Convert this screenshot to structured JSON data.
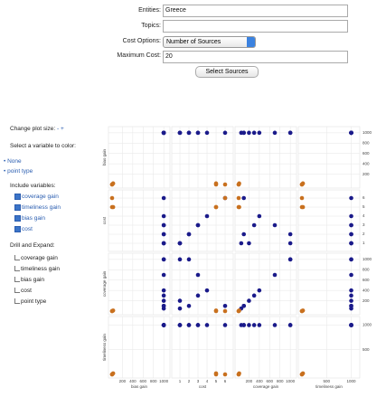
{
  "form": {
    "fields": [
      {
        "label": "Entities:",
        "value": "Greece"
      },
      {
        "label": "Topics:"
      },
      {
        "label": "Cost Options:",
        "value": "Number of Sources"
      },
      {
        "label": "Maximum Cost:",
        "value": "20"
      }
    ],
    "button": "Select Sources"
  },
  "sidebar": {
    "plot_size": "Change plot size:",
    "minus": "-",
    "plus": "+",
    "color_prompt": "Select a variable to color:",
    "color_options": [
      "None",
      "point type"
    ],
    "include_title": "Include variables:",
    "include": [
      "coverage gain",
      "timeliness gain",
      "bias gain",
      "cost"
    ],
    "drill_title": "Drill and Expand:",
    "drill": [
      "coverage gain",
      "timeliness gain",
      "bias gain",
      "cost",
      "point type"
    ]
  },
  "matrix": {
    "variables": [
      "bias gain",
      "cost",
      "coverage gain",
      "timeliness gain"
    ],
    "axes": [
      {
        "lim": [
          0,
          1050
        ],
        "ticks": [
          200,
          400,
          600,
          800,
          1000
        ]
      },
      {
        "lim": [
          0.5,
          6.5
        ],
        "ticks": [
          1,
          2,
          3,
          4,
          5,
          6
        ]
      },
      {
        "lim": [
          0,
          1050
        ],
        "ticks": [
          200,
          400,
          600,
          800,
          1000
        ]
      },
      {
        "lim": [
          0,
          1100
        ],
        "ticks": [
          500,
          1000
        ]
      }
    ],
    "points": [
      {
        "color": "#1a1a8a",
        "values": [
          1000,
          1,
          1000,
          1000
        ]
      },
      {
        "color": "#1a1a8a",
        "values": [
          1000,
          2,
          1000,
          1000
        ]
      },
      {
        "color": "#1a1a8a",
        "values": [
          1000,
          3,
          700,
          1000
        ]
      },
      {
        "color": "#1a1a8a",
        "values": [
          1000,
          4,
          400,
          1000
        ]
      },
      {
        "color": "#1a1a8a",
        "values": [
          1000,
          6,
          100,
          1000
        ]
      },
      {
        "color": "#1a1a8a",
        "values": [
          1000,
          1,
          200,
          1000
        ]
      },
      {
        "color": "#1a1a8a",
        "values": [
          1000,
          2,
          100,
          1000
        ]
      },
      {
        "color": "#1a1a8a",
        "values": [
          1000,
          3,
          300,
          1000
        ]
      },
      {
        "color": "#1a1a8a",
        "values": [
          1000,
          1,
          50,
          1000
        ]
      },
      {
        "color": "#c8701e",
        "values": [
          0,
          5,
          0,
          0
        ]
      },
      {
        "color": "#c8701e",
        "values": [
          0,
          6,
          0,
          0
        ]
      },
      {
        "color": "#c8701e",
        "values": [
          20,
          5,
          10,
          20
        ]
      }
    ]
  }
}
